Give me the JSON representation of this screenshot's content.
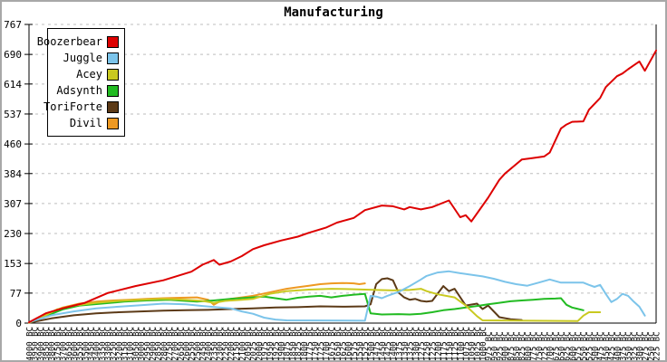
{
  "chart_data": {
    "type": "line",
    "title": "Manufacturing",
    "ylim": [
      0,
      767
    ],
    "y_ticks": [
      0,
      77,
      153,
      230,
      307,
      384,
      460,
      537,
      614,
      690,
      767
    ],
    "grid": "horizontal-dashed",
    "legend_position": "top-left",
    "x_axis_era": "BC",
    "x_categories": [
      "4000 BC",
      "3950 BC",
      "3900 BC",
      "3850 BC",
      "3800 BC",
      "3750 BC",
      "3700 BC",
      "3650 BC",
      "3600 BC",
      "3550 BC",
      "3500 BC",
      "3450 BC",
      "3400 BC",
      "3350 BC",
      "3300 BC",
      "3250 BC",
      "3200 BC",
      "3150 BC",
      "3100 BC",
      "3050 BC",
      "3000 BC",
      "2950 BC",
      "2900 BC",
      "2850 BC",
      "2800 BC",
      "2750 BC",
      "2700 BC",
      "2650 BC",
      "2600 BC",
      "2550 BC",
      "2500 BC",
      "2450 BC",
      "2400 BC",
      "2350 BC",
      "2300 BC",
      "2250 BC",
      "2200 BC",
      "2150 BC",
      "2100 BC",
      "2050 BC",
      "2025 BC",
      "2000 BC",
      "1975 BC",
      "1950 BC",
      "1925 BC",
      "1900 BC",
      "1875 BC",
      "1850 BC",
      "1825 BC",
      "1800 BC",
      "1775 BC",
      "1750 BC",
      "1725 BC",
      "1700 BC",
      "1675 BC",
      "1650 BC",
      "1625 BC",
      "1600 BC",
      "1575 BC",
      "1550 BC",
      "1525 BC",
      "1500 BC",
      "1475 BC",
      "1450 BC",
      "1425 BC",
      "1400 BC",
      "1375 BC",
      "1350 BC",
      "1325 BC",
      "1300 BC",
      "1275 BC",
      "1250 BC",
      "1225 BC",
      "1200 BC",
      "1175 BC",
      "1150 BC",
      "1125 BC",
      "1100 BC",
      "1075 BC",
      "1050 BC",
      "1025 BC",
      "1000 BC",
      "975 BC",
      "950 BC",
      "925 BC",
      "900 BC",
      "875 BC",
      "850 BC",
      "825 BC",
      "800 BC",
      "775 BC",
      "750 BC",
      "725 BC",
      "700 BC",
      "675 BC",
      "650 BC",
      "625 BC",
      "600 BC",
      "575 BC",
      "550 BC",
      "525 BC",
      "500 BC",
      "475 BC",
      "450 BC",
      "425 BC",
      "400 BC",
      "375 BC",
      "350 BC",
      "325 BC",
      "300 BC",
      "275 BC",
      "250 BC",
      "225 BC"
    ],
    "series": [
      {
        "name": "Boozerbear",
        "color": "#dd0000",
        "points": [
          [
            0,
            2
          ],
          [
            3,
            25
          ],
          [
            6,
            38
          ],
          [
            10,
            52
          ],
          [
            14,
            77
          ],
          [
            19,
            95
          ],
          [
            24,
            110
          ],
          [
            29,
            132
          ],
          [
            31,
            150
          ],
          [
            33,
            162
          ],
          [
            34,
            150
          ],
          [
            36,
            158
          ],
          [
            38,
            172
          ],
          [
            40,
            190
          ],
          [
            42,
            200
          ],
          [
            45,
            212
          ],
          [
            48,
            222
          ],
          [
            50,
            232
          ],
          [
            53,
            245
          ],
          [
            55,
            258
          ],
          [
            58,
            270
          ],
          [
            60,
            290
          ],
          [
            63,
            302
          ],
          [
            65,
            300
          ],
          [
            67,
            292
          ],
          [
            68,
            298
          ],
          [
            70,
            292
          ],
          [
            72,
            298
          ],
          [
            75,
            315
          ],
          [
            77,
            272
          ],
          [
            78,
            277
          ],
          [
            79,
            261
          ],
          [
            82,
            322
          ],
          [
            84,
            368
          ],
          [
            85,
            384
          ],
          [
            87,
            408
          ],
          [
            88,
            420
          ],
          [
            90,
            424
          ],
          [
            92,
            428
          ],
          [
            93,
            438
          ],
          [
            95,
            500
          ],
          [
            96,
            510
          ],
          [
            97,
            517
          ],
          [
            99,
            518
          ],
          [
            100,
            548
          ],
          [
            102,
            578
          ],
          [
            103,
            606
          ],
          [
            105,
            634
          ],
          [
            106,
            641
          ],
          [
            107,
            652
          ],
          [
            108,
            662
          ],
          [
            109,
            672
          ],
          [
            110,
            648
          ],
          [
            112,
            700
          ]
        ]
      },
      {
        "name": "Juggle",
        "color": "#7cc4ea",
        "points": [
          [
            0,
            2
          ],
          [
            4,
            20
          ],
          [
            8,
            30
          ],
          [
            12,
            38
          ],
          [
            16,
            42
          ],
          [
            20,
            46
          ],
          [
            24,
            50
          ],
          [
            28,
            48
          ],
          [
            31,
            44
          ],
          [
            34,
            40
          ],
          [
            36,
            38
          ],
          [
            38,
            30
          ],
          [
            40,
            24
          ],
          [
            42,
            14
          ],
          [
            44,
            9
          ],
          [
            46,
            7
          ],
          [
            60,
            6
          ],
          [
            61,
            70
          ],
          [
            62,
            68
          ],
          [
            63,
            64
          ],
          [
            64,
            70
          ],
          [
            66,
            80
          ],
          [
            68,
            95
          ],
          [
            70,
            112
          ],
          [
            71,
            121
          ],
          [
            73,
            130
          ],
          [
            75,
            133
          ],
          [
            77,
            128
          ],
          [
            79,
            124
          ],
          [
            81,
            120
          ],
          [
            83,
            114
          ],
          [
            85,
            106
          ],
          [
            87,
            100
          ],
          [
            89,
            96
          ],
          [
            91,
            104
          ],
          [
            93,
            112
          ],
          [
            95,
            104
          ],
          [
            97,
            104
          ],
          [
            99,
            104
          ],
          [
            100,
            98
          ],
          [
            101,
            93
          ],
          [
            102,
            98
          ],
          [
            103,
            75
          ],
          [
            104,
            54
          ],
          [
            105,
            62
          ],
          [
            106,
            75
          ],
          [
            107,
            70
          ],
          [
            108,
            55
          ],
          [
            109,
            42
          ],
          [
            110,
            19
          ]
        ]
      },
      {
        "name": "Acey",
        "color": "#c9c920",
        "points": [
          [
            0,
            1
          ],
          [
            3,
            20
          ],
          [
            5,
            35
          ],
          [
            8,
            45
          ],
          [
            12,
            52
          ],
          [
            16,
            57
          ],
          [
            20,
            60
          ],
          [
            24,
            62
          ],
          [
            28,
            60
          ],
          [
            31,
            57
          ],
          [
            33,
            52
          ],
          [
            35,
            57
          ],
          [
            38,
            60
          ],
          [
            40,
            62
          ],
          [
            43,
            75
          ],
          [
            46,
            82
          ],
          [
            50,
            86
          ],
          [
            54,
            88
          ],
          [
            58,
            87
          ],
          [
            62,
            85
          ],
          [
            65,
            84
          ],
          [
            68,
            85
          ],
          [
            70,
            88
          ],
          [
            71,
            82
          ],
          [
            73,
            74
          ],
          [
            76,
            66
          ],
          [
            78,
            45
          ],
          [
            80,
            18
          ],
          [
            81,
            7
          ],
          [
            98,
            5
          ],
          [
            99,
            19
          ],
          [
            100,
            28
          ],
          [
            102,
            28
          ]
        ]
      },
      {
        "name": "Adsynth",
        "color": "#22bb22",
        "points": [
          [
            0,
            1
          ],
          [
            3,
            18
          ],
          [
            6,
            35
          ],
          [
            9,
            45
          ],
          [
            13,
            50
          ],
          [
            17,
            55
          ],
          [
            21,
            58
          ],
          [
            25,
            60
          ],
          [
            28,
            57
          ],
          [
            30,
            55
          ],
          [
            33,
            58
          ],
          [
            36,
            62
          ],
          [
            39,
            65
          ],
          [
            42,
            68
          ],
          [
            44,
            64
          ],
          [
            46,
            60
          ],
          [
            48,
            65
          ],
          [
            50,
            68
          ],
          [
            52,
            70
          ],
          [
            54,
            66
          ],
          [
            56,
            70
          ],
          [
            58,
            73
          ],
          [
            60,
            75
          ],
          [
            61,
            25
          ],
          [
            63,
            22
          ],
          [
            66,
            23
          ],
          [
            68,
            22
          ],
          [
            70,
            24
          ],
          [
            72,
            28
          ],
          [
            74,
            33
          ],
          [
            76,
            36
          ],
          [
            78,
            40
          ],
          [
            80,
            44
          ],
          [
            82,
            48
          ],
          [
            84,
            52
          ],
          [
            86,
            56
          ],
          [
            88,
            58
          ],
          [
            90,
            60
          ],
          [
            92,
            62
          ],
          [
            94,
            63
          ],
          [
            95,
            64
          ],
          [
            96,
            47
          ],
          [
            97,
            40
          ],
          [
            99,
            33
          ]
        ]
      },
      {
        "name": "ToriForte",
        "color": "#5c3a17",
        "points": [
          [
            0,
            1
          ],
          [
            4,
            12
          ],
          [
            8,
            20
          ],
          [
            12,
            25
          ],
          [
            16,
            28
          ],
          [
            20,
            30
          ],
          [
            24,
            32
          ],
          [
            28,
            33
          ],
          [
            32,
            34
          ],
          [
            36,
            36
          ],
          [
            40,
            38
          ],
          [
            44,
            40
          ],
          [
            48,
            41
          ],
          [
            52,
            43
          ],
          [
            56,
            42
          ],
          [
            60,
            43
          ],
          [
            61,
            48
          ],
          [
            62,
            100
          ],
          [
            63,
            113
          ],
          [
            64,
            115
          ],
          [
            65,
            110
          ],
          [
            66,
            78
          ],
          [
            67,
            66
          ],
          [
            68,
            60
          ],
          [
            69,
            62
          ],
          [
            70,
            57
          ],
          [
            71,
            55
          ],
          [
            72,
            57
          ],
          [
            74,
            95
          ],
          [
            75,
            82
          ],
          [
            76,
            88
          ],
          [
            78,
            45
          ],
          [
            80,
            50
          ],
          [
            81,
            36
          ],
          [
            82,
            45
          ],
          [
            84,
            15
          ],
          [
            86,
            10
          ],
          [
            88,
            8
          ]
        ]
      },
      {
        "name": "Divil",
        "color": "#ee9922",
        "points": [
          [
            0,
            1
          ],
          [
            3,
            22
          ],
          [
            6,
            40
          ],
          [
            9,
            50
          ],
          [
            12,
            55
          ],
          [
            15,
            58
          ],
          [
            18,
            60
          ],
          [
            21,
            62
          ],
          [
            24,
            64
          ],
          [
            27,
            65
          ],
          [
            30,
            66
          ],
          [
            32,
            60
          ],
          [
            33,
            47
          ],
          [
            34,
            55
          ],
          [
            36,
            62
          ],
          [
            38,
            66
          ],
          [
            40,
            70
          ],
          [
            42,
            76
          ],
          [
            44,
            82
          ],
          [
            46,
            88
          ],
          [
            48,
            92
          ],
          [
            50,
            96
          ],
          [
            52,
            100
          ],
          [
            54,
            102
          ],
          [
            56,
            103
          ],
          [
            58,
            102
          ],
          [
            59,
            100
          ],
          [
            60,
            102
          ]
        ]
      }
    ],
    "colors": {
      "axis": "#000000",
      "grid": "#bdbdbd",
      "frame_border": "#a8a8a8",
      "background": "#ffffff"
    }
  }
}
